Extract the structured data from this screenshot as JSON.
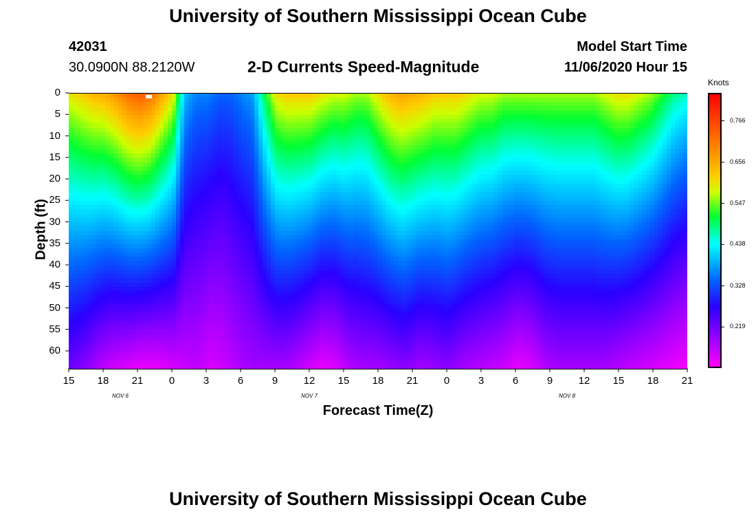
{
  "header": {
    "title": "University of Southern Mississippi Ocean Cube",
    "station_id": "42031",
    "coordinates": "30.0900N 88.2120W",
    "chart_title": "2-D Currents Speed-Magnitude",
    "model_start_label": "Model Start Time",
    "model_start_value": "11/06/2020 Hour 15"
  },
  "footer": {
    "title": "University of Southern Mississippi Ocean Cube"
  },
  "chart_data": {
    "type": "heatmap",
    "title": "2-D Currents Speed-Magnitude",
    "xlabel": "Forecast Time(Z)",
    "ylabel": "Depth (ft)",
    "x_tick_labels": [
      "15",
      "18",
      "21",
      "0",
      "3",
      "6",
      "9",
      "12",
      "15",
      "18",
      "21",
      "0",
      "3",
      "6",
      "9",
      "12",
      "15",
      "18",
      "21"
    ],
    "x_range_hours": [
      0,
      54
    ],
    "day_labels": [
      {
        "label": "NOV 6",
        "hour": 4.5
      },
      {
        "label": "NOV 7",
        "hour": 21
      },
      {
        "label": "NOV 8",
        "hour": 43.5
      }
    ],
    "y_tick_labels": [
      "0",
      "5",
      "10",
      "15",
      "20",
      "25",
      "30",
      "35",
      "40",
      "45",
      "50",
      "55",
      "60"
    ],
    "y_range_ft": [
      0,
      64
    ],
    "colorbar": {
      "units": "Knots",
      "tick_labels": [
        "0.766",
        "0.656",
        "0.547",
        "0.438",
        "0.328",
        "0.219"
      ],
      "tick_values": [
        0.766,
        0.656,
        0.547,
        0.438,
        0.328,
        0.219
      ],
      "range": [
        0.11,
        0.84
      ]
    },
    "surface_speed": [
      0.6,
      0.62,
      0.64,
      0.65,
      0.68,
      0.72,
      0.74,
      0.72,
      0.66,
      0.6,
      0.4,
      0.36,
      0.36,
      0.34,
      0.34,
      0.36,
      0.38,
      0.5,
      0.6,
      0.62,
      0.62,
      0.62,
      0.6,
      0.58,
      0.58,
      0.56,
      0.56,
      0.6,
      0.64,
      0.66,
      0.65,
      0.64,
      0.62,
      0.62,
      0.62,
      0.6,
      0.58,
      0.58,
      0.56,
      0.56,
      0.56,
      0.56,
      0.56,
      0.56,
      0.56,
      0.56,
      0.56,
      0.58,
      0.6,
      0.6,
      0.58,
      0.56,
      0.52,
      0.48,
      0.46
    ],
    "bottom_speed": [
      0.22,
      0.2,
      0.17,
      0.15,
      0.14,
      0.13,
      0.13,
      0.14,
      0.15,
      0.16,
      0.14,
      0.15,
      0.17,
      0.18,
      0.18,
      0.18,
      0.17,
      0.15,
      0.13,
      0.14,
      0.17,
      0.18,
      0.18,
      0.19,
      0.2,
      0.18,
      0.19,
      0.2,
      0.18,
      0.17,
      0.16,
      0.15,
      0.13,
      0.14,
      0.17,
      0.18,
      0.18,
      0.18,
      0.18,
      0.17,
      0.16,
      0.15,
      0.14,
      0.13,
      0.12
    ]
  }
}
